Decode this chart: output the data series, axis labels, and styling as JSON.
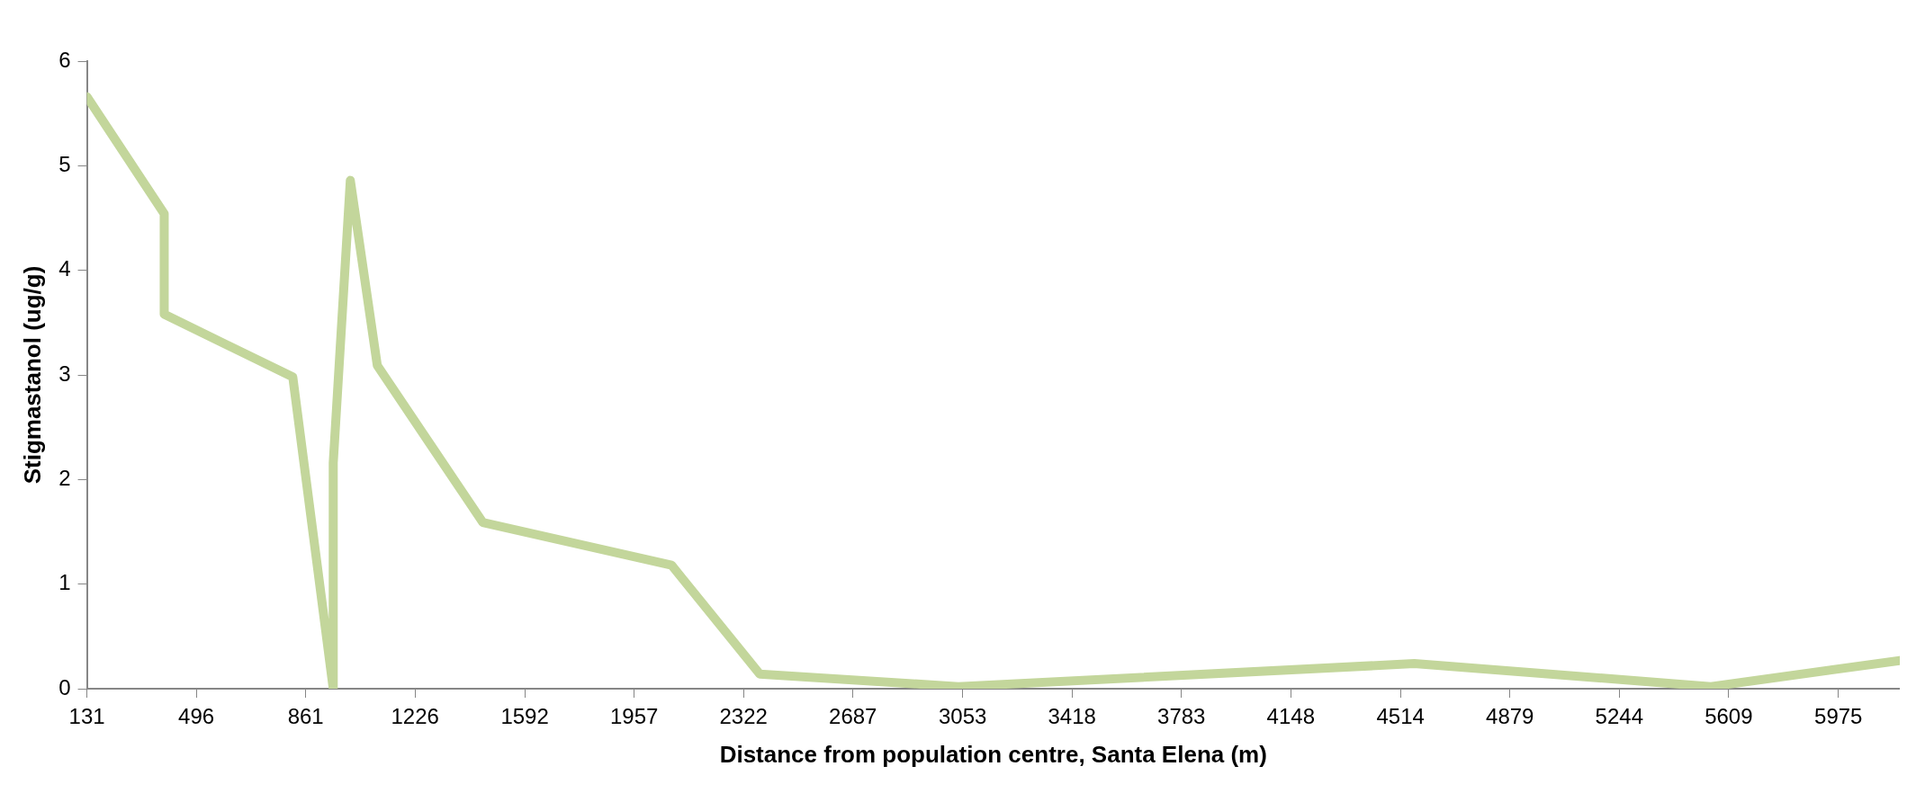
{
  "chart_data": {
    "type": "line",
    "xlabel": "Distance from population centre, Santa Elena (m)",
    "ylabel": "Stigmastanol (ug/g)",
    "x": [
      131,
      389,
      389,
      818,
      953,
      953,
      1010,
      1100,
      1452,
      2082,
      2376,
      3039,
      4560,
      5550,
      6180
    ],
    "series": [
      {
        "color": "#c3d69b",
        "values": [
          5.66,
          4.54,
          3.58,
          2.98,
          0,
          2.16,
          4.86,
          3.09,
          1.59,
          1.18,
          0.14,
          0.02,
          0.24,
          0.02,
          0.27
        ]
      }
    ],
    "xlim": [
      131,
      6180
    ],
    "xticks": [
      131,
      496,
      861,
      1226,
      1592,
      1957,
      2322,
      2687,
      3053,
      3418,
      3783,
      4148,
      4514,
      4879,
      5244,
      5609,
      5975
    ],
    "ylim": [
      0,
      6
    ],
    "yticks": [
      0,
      1,
      2,
      3,
      4,
      5,
      6
    ],
    "grid": false,
    "legend": false,
    "marker": "none",
    "line_style": "solid"
  }
}
